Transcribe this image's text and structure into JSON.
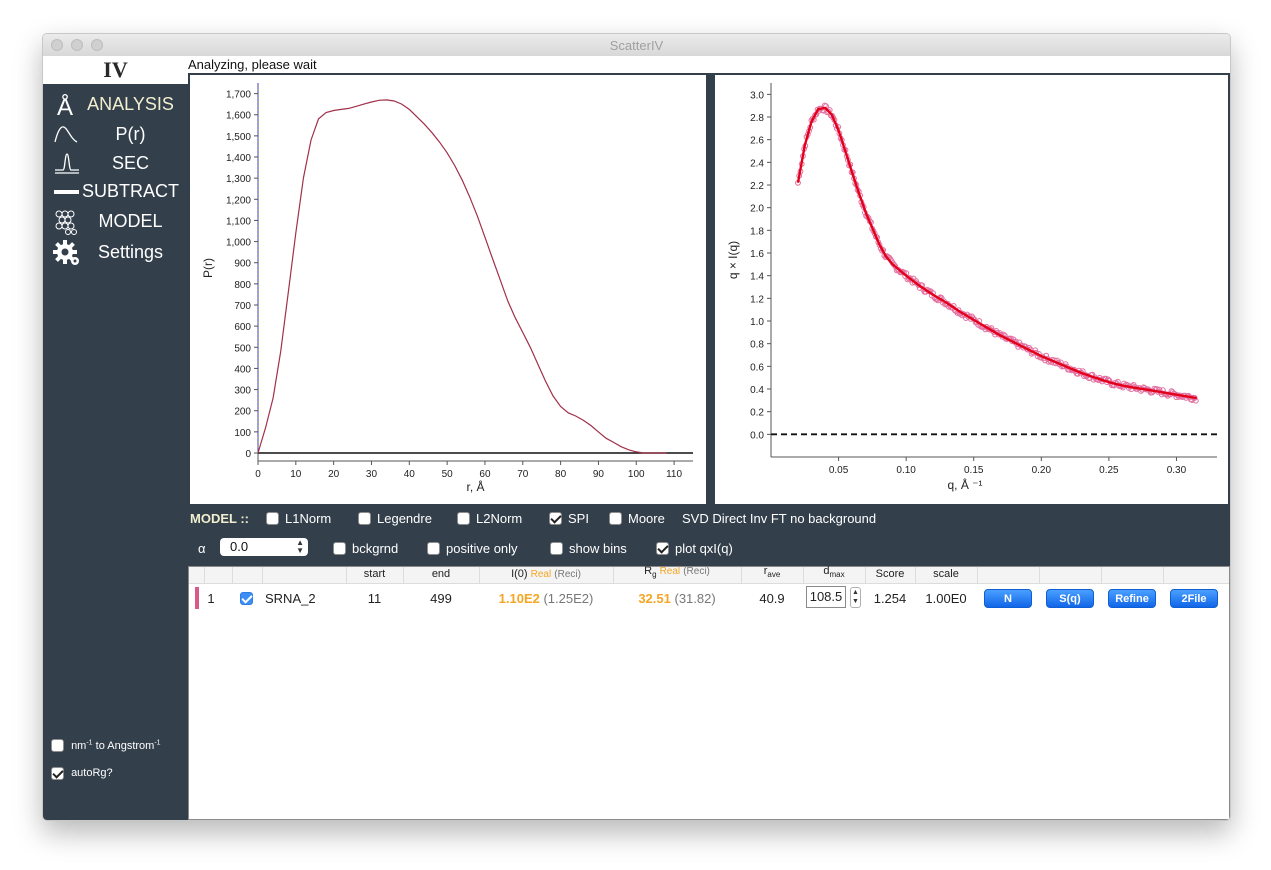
{
  "window": {
    "title": "ScatterIV"
  },
  "sidebar": {
    "logo": "IV",
    "nav": [
      {
        "label": "ANALYSIS",
        "icon": "angstrom-icon"
      },
      {
        "label": "P(r)",
        "icon": "pr-curve-icon"
      },
      {
        "label": "SEC",
        "icon": "sec-peak-icon"
      },
      {
        "label": "SUBTRACT",
        "icon": "minus-bar-icon"
      },
      {
        "label": "MODEL",
        "icon": "spheres-icon"
      },
      {
        "label": "Settings",
        "icon": "gear-icon"
      }
    ],
    "options": [
      {
        "label_main": "nm",
        "label_sup": "-1",
        "label_rest": " to Angstrom",
        "label_sup2": "-1",
        "checked": false
      },
      {
        "label": "autoRg?",
        "checked": true
      }
    ]
  },
  "status": {
    "text": "Analyzing, please wait"
  },
  "chart_data": [
    {
      "type": "line",
      "xlabel": "r, Å",
      "ylabel": "P(r)",
      "xlim": [
        0,
        115
      ],
      "ylim": [
        0,
        1750
      ],
      "xticks": [
        "0",
        "10",
        "20",
        "30",
        "40",
        "50",
        "60",
        "70",
        "80",
        "90",
        "100",
        "110"
      ],
      "yticks": [
        "0",
        "100",
        "200",
        "300",
        "400",
        "500",
        "600",
        "700",
        "800",
        "900",
        "1,000",
        "1,100",
        "1,200",
        "1,300",
        "1,400",
        "1,500",
        "1,600",
        "1,700"
      ],
      "color": "#a1304a",
      "x": [
        0,
        2,
        4,
        6,
        8,
        10,
        12,
        14,
        16,
        18,
        20,
        22,
        24,
        26,
        28,
        30,
        32,
        34,
        36,
        38,
        40,
        42,
        44,
        46,
        48,
        50,
        52,
        54,
        56,
        58,
        60,
        62,
        64,
        66,
        68,
        70,
        72,
        74,
        76,
        78,
        80,
        82,
        84,
        86,
        88,
        90,
        92,
        94,
        96,
        98,
        100,
        102,
        104,
        106,
        108
      ],
      "y": [
        0,
        120,
        260,
        480,
        760,
        1040,
        1300,
        1480,
        1580,
        1610,
        1620,
        1625,
        1630,
        1640,
        1650,
        1660,
        1668,
        1670,
        1665,
        1650,
        1625,
        1590,
        1555,
        1515,
        1470,
        1420,
        1360,
        1290,
        1210,
        1120,
        1020,
        920,
        820,
        720,
        640,
        570,
        500,
        420,
        340,
        270,
        220,
        190,
        175,
        155,
        130,
        100,
        70,
        50,
        30,
        15,
        5,
        0,
        0,
        0,
        0
      ],
      "xline": 0
    },
    {
      "type": "scatter",
      "xlabel": "q, Å ⁻¹",
      "ylabel": "q × I(q)",
      "xlim": [
        0,
        0.33
      ],
      "ylim": [
        -0.2,
        3.1
      ],
      "xticks": [
        "0.05",
        "0.10",
        "0.15",
        "0.20",
        "0.25",
        "0.30"
      ],
      "yticks": [
        "0.0",
        "0.2",
        "0.4",
        "0.6",
        "0.8",
        "1.0",
        "1.2",
        "1.4",
        "1.6",
        "1.8",
        "2.0",
        "2.2",
        "2.4",
        "2.6",
        "2.8",
        "3.0"
      ],
      "point_color": "#e26fa0",
      "fit_color": "#e3001b",
      "baseline": 0.0,
      "x": [
        0.02,
        0.025,
        0.03,
        0.035,
        0.04,
        0.045,
        0.05,
        0.055,
        0.06,
        0.065,
        0.07,
        0.075,
        0.08,
        0.085,
        0.09,
        0.095,
        0.1,
        0.11,
        0.12,
        0.13,
        0.14,
        0.15,
        0.16,
        0.17,
        0.18,
        0.19,
        0.2,
        0.21,
        0.22,
        0.23,
        0.24,
        0.25,
        0.26,
        0.27,
        0.28,
        0.29,
        0.3,
        0.31,
        0.315
      ],
      "fit": [
        2.22,
        2.55,
        2.76,
        2.87,
        2.88,
        2.82,
        2.68,
        2.5,
        2.31,
        2.13,
        1.96,
        1.82,
        1.68,
        1.57,
        1.5,
        1.45,
        1.4,
        1.31,
        1.23,
        1.16,
        1.08,
        1.01,
        0.94,
        0.87,
        0.81,
        0.75,
        0.69,
        0.64,
        0.59,
        0.54,
        0.5,
        0.46,
        0.43,
        0.41,
        0.39,
        0.37,
        0.35,
        0.33,
        0.32
      ]
    }
  ],
  "model": {
    "title": "MODEL ::",
    "methods": [
      {
        "label": "L1Norm",
        "checked": false
      },
      {
        "label": "Legendre",
        "checked": false
      },
      {
        "label": "L2Norm",
        "checked": false
      },
      {
        "label": "SPI",
        "checked": true
      },
      {
        "label": "Moore",
        "checked": false
      }
    ],
    "description": "SVD Direct Inv FT no background",
    "alpha_label": "α",
    "alpha_value": "0.0",
    "options": [
      {
        "label": "bckgrnd",
        "checked": false
      },
      {
        "label": "positive only",
        "checked": false
      },
      {
        "label": "show bins",
        "checked": false
      },
      {
        "label": "plot qxI(q)",
        "checked": true
      }
    ]
  },
  "table": {
    "headers": {
      "start": "start",
      "end": "end",
      "i0": "I(0)",
      "real": "Real",
      "reci": "(Reci)",
      "rg_main": "R",
      "rg_sub": "g",
      "rave_main": "r",
      "rave_sub": "ave",
      "dmax_main": "d",
      "dmax_sub": "max",
      "score": "Score",
      "scale": "scale"
    },
    "row": {
      "index": "1",
      "checked": true,
      "name": "SRNA_2",
      "start": "11",
      "end": "499",
      "i0_real": "1.10E2",
      "i0_reci": "(1.25E2)",
      "rg_real": "32.51",
      "rg_reci": "(31.82)",
      "rave": "40.9",
      "dmax": "108.5",
      "score": "1.254",
      "scale": "1.00E0",
      "color": "#d9598c",
      "buttons": [
        "N",
        "S(q)",
        "Refine",
        "2File"
      ]
    }
  }
}
